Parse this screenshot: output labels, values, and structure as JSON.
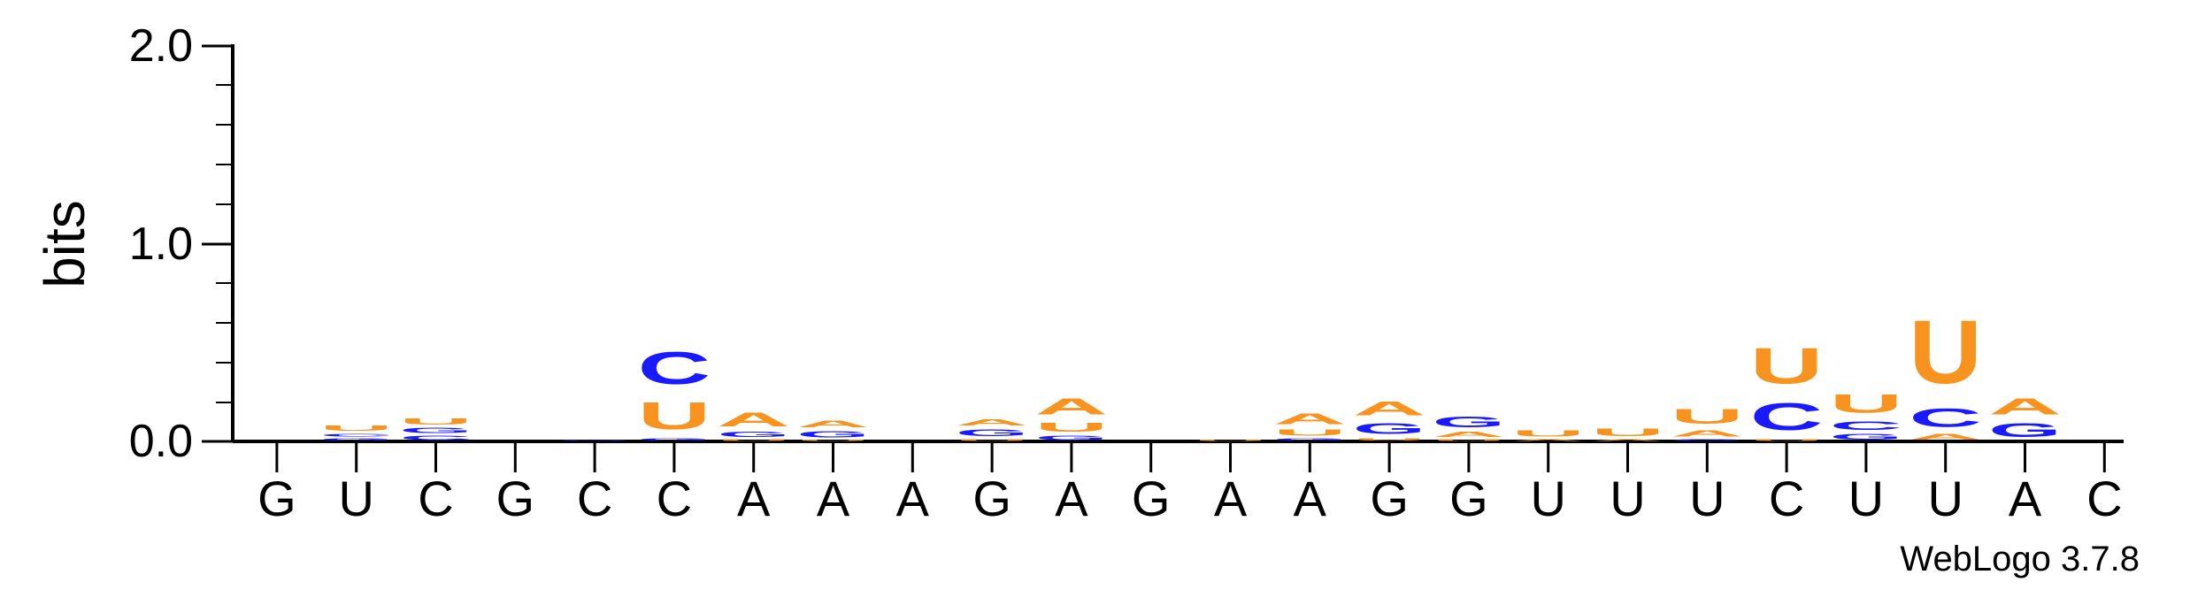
{
  "chart_data": {
    "type": "sequence-logo",
    "ylabel": "bits",
    "ylim": [
      0,
      2.0
    ],
    "yticks": [
      "0.0",
      "1.0",
      "2.0"
    ],
    "footer": "WebLogo 3.7.8",
    "colors": {
      "A": "#f7931e",
      "U": "#f7931e",
      "C": "#1a1aff",
      "G": "#1a1aff"
    },
    "positions": [
      {
        "label": "G",
        "stack": []
      },
      {
        "label": "U",
        "stack": [
          [
            "G",
            0.02
          ],
          [
            "C",
            0.025
          ],
          [
            "U",
            0.04
          ]
        ]
      },
      {
        "label": "C",
        "stack": [
          [
            "C",
            0.035
          ],
          [
            "G",
            0.04
          ],
          [
            "U",
            0.05
          ]
        ]
      },
      {
        "label": "G",
        "stack": []
      },
      {
        "label": "C",
        "stack": [
          [
            "G",
            0.01
          ]
        ]
      },
      {
        "label": "C",
        "stack": [
          [
            "G",
            0.02
          ],
          [
            "U",
            0.22
          ],
          [
            "C",
            0.26
          ]
        ]
      },
      {
        "label": "A",
        "stack": [
          [
            "U",
            0.015
          ],
          [
            "G",
            0.04
          ],
          [
            "A",
            0.11
          ]
        ]
      },
      {
        "label": "A",
        "stack": [
          [
            "U",
            0.01
          ],
          [
            "G",
            0.05
          ],
          [
            "A",
            0.055
          ]
        ]
      },
      {
        "label": "A",
        "stack": []
      },
      {
        "label": "G",
        "stack": [
          [
            "U",
            0.015
          ],
          [
            "G",
            0.055
          ],
          [
            "A",
            0.05
          ]
        ]
      },
      {
        "label": "A",
        "stack": [
          [
            "G",
            0.035
          ],
          [
            "U",
            0.075
          ],
          [
            "A",
            0.13
          ]
        ]
      },
      {
        "label": "G",
        "stack": []
      },
      {
        "label": "A",
        "stack": [
          [
            "U",
            0.01
          ]
        ]
      },
      {
        "label": "A",
        "stack": [
          [
            "G",
            0.02
          ],
          [
            "U",
            0.05
          ],
          [
            "A",
            0.09
          ]
        ]
      },
      {
        "label": "G",
        "stack": [
          [
            "U",
            0.02
          ],
          [
            "G",
            0.09
          ],
          [
            "A",
            0.11
          ]
        ]
      },
      {
        "label": "G",
        "stack": [
          [
            "U",
            0.015
          ],
          [
            "A",
            0.04
          ],
          [
            "G",
            0.09
          ]
        ]
      },
      {
        "label": "U",
        "stack": [
          [
            "A",
            0.015
          ],
          [
            "U",
            0.05
          ]
        ]
      },
      {
        "label": "U",
        "stack": [
          [
            "A",
            0.015
          ],
          [
            "U",
            0.06
          ]
        ]
      },
      {
        "label": "U",
        "stack": [
          [
            "G",
            0.015
          ],
          [
            "A",
            0.05
          ],
          [
            "U",
            0.12
          ]
        ]
      },
      {
        "label": "C",
        "stack": [
          [
            "U",
            0.015
          ],
          [
            "C",
            0.22
          ],
          [
            "U",
            0.29
          ]
        ]
      },
      {
        "label": "U",
        "stack": [
          [
            "G",
            0.045
          ],
          [
            "C",
            0.07
          ],
          [
            "U",
            0.15
          ]
        ]
      },
      {
        "label": "U",
        "stack": [
          [
            "A",
            0.045
          ],
          [
            "C",
            0.15
          ],
          [
            "U",
            0.51
          ]
        ]
      },
      {
        "label": "A",
        "stack": [
          [
            "G",
            0.11
          ],
          [
            "A",
            0.13
          ]
        ]
      },
      {
        "label": "C",
        "stack": []
      }
    ]
  }
}
